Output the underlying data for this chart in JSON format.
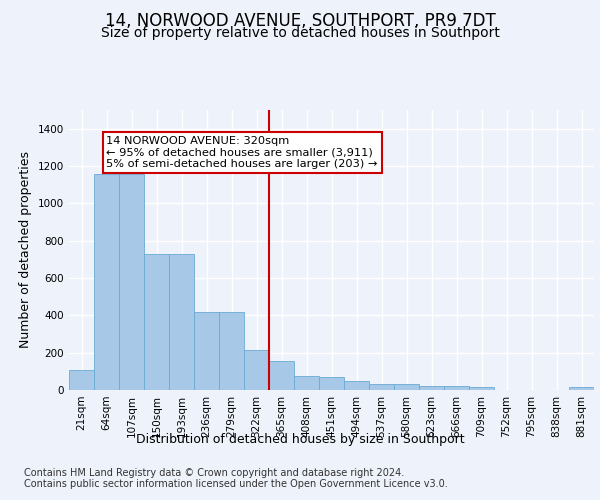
{
  "title": "14, NORWOOD AVENUE, SOUTHPORT, PR9 7DT",
  "subtitle": "Size of property relative to detached houses in Southport",
  "xlabel": "Distribution of detached houses by size in Southport",
  "ylabel": "Number of detached properties",
  "categories": [
    "21sqm",
    "64sqm",
    "107sqm",
    "150sqm",
    "193sqm",
    "236sqm",
    "279sqm",
    "322sqm",
    "365sqm",
    "408sqm",
    "451sqm",
    "494sqm",
    "537sqm",
    "580sqm",
    "623sqm",
    "666sqm",
    "709sqm",
    "752sqm",
    "795sqm",
    "838sqm",
    "881sqm"
  ],
  "values": [
    108,
    1155,
    1155,
    730,
    730,
    418,
    418,
    215,
    155,
    75,
    70,
    48,
    32,
    32,
    20,
    20,
    15,
    0,
    0,
    0,
    15
  ],
  "bar_color": "#a8c8e8",
  "bar_edge_color": "#6aaad4",
  "vline_color": "#cc0000",
  "annotation_text": "14 NORWOOD AVENUE: 320sqm\n← 95% of detached houses are smaller (3,911)\n5% of semi-detached houses are larger (203) →",
  "annotation_box_color": "#cc0000",
  "footer": "Contains HM Land Registry data © Crown copyright and database right 2024.\nContains public sector information licensed under the Open Government Licence v3.0.",
  "ylim": [
    0,
    1500
  ],
  "yticks": [
    0,
    200,
    400,
    600,
    800,
    1000,
    1200,
    1400
  ],
  "background_color": "#eef2fa",
  "grid_color": "#ffffff",
  "title_fontsize": 12,
  "subtitle_fontsize": 10,
  "axis_label_fontsize": 9,
  "tick_fontsize": 7.5,
  "footer_fontsize": 7,
  "vline_index": 7
}
